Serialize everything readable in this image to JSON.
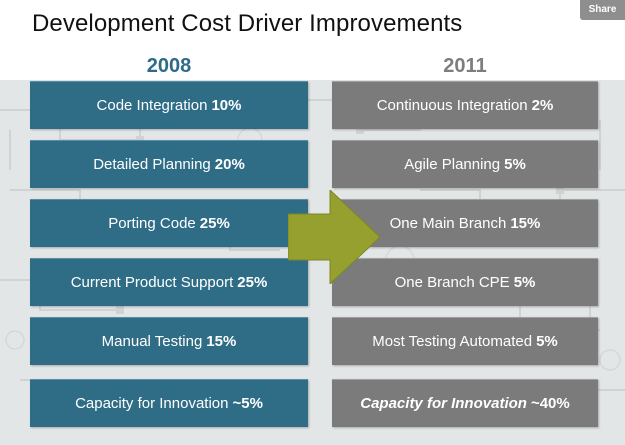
{
  "title": "Development Cost Driver Improvements",
  "share_label": "Share",
  "columns": {
    "left_year": "2008",
    "right_year": "2011"
  },
  "colors": {
    "left_box": "#2f6d87",
    "right_box": "#7b7b7b",
    "left_year": "#2e6b8a",
    "right_year": "#7e7e7e",
    "arrow": "#96a02e"
  },
  "left_items": [
    {
      "label": "Code Integration",
      "pct": "10%"
    },
    {
      "label": "Detailed Planning",
      "pct": "20%"
    },
    {
      "label": "Porting Code",
      "pct": "25%"
    },
    {
      "label": "Current Product Support",
      "pct": "25%"
    },
    {
      "label": "Manual Testing",
      "pct": "15%"
    },
    {
      "label": "Capacity for Innovation",
      "pct": "~5%"
    }
  ],
  "right_items": [
    {
      "label": "Continuous Integration",
      "pct": "2%"
    },
    {
      "label": "Agile Planning",
      "pct": "5%"
    },
    {
      "label": "One Main Branch",
      "pct": "15%"
    },
    {
      "label": "One Branch CPE",
      "pct": "5%"
    },
    {
      "label": "Most Testing Automated",
      "pct": "5%"
    },
    {
      "label": "Capacity for Innovation",
      "pct": "~40%"
    }
  ],
  "arrow_icon": "right-arrow-icon"
}
